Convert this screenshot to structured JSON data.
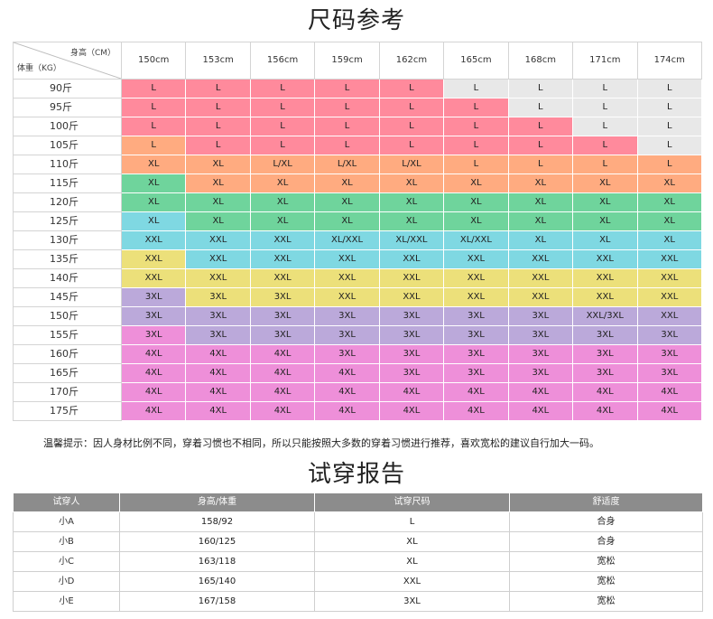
{
  "size_chart": {
    "title": "尺码参考",
    "corner_height_label": "身高（CM）",
    "corner_weight_label": "体重（KG）",
    "heights": [
      "150cm",
      "153cm",
      "156cm",
      "159cm",
      "162cm",
      "165cm",
      "168cm",
      "171cm",
      "174cm"
    ],
    "rows": [
      {
        "weight": "90斤",
        "cells": [
          "L",
          "L",
          "L",
          "L",
          "L",
          "L",
          "L",
          "L",
          "L"
        ]
      },
      {
        "weight": "95斤",
        "cells": [
          "L",
          "L",
          "L",
          "L",
          "L",
          "L",
          "L",
          "L",
          "L"
        ]
      },
      {
        "weight": "100斤",
        "cells": [
          "L",
          "L",
          "L",
          "L",
          "L",
          "L",
          "L",
          "L",
          "L"
        ]
      },
      {
        "weight": "105斤",
        "cells": [
          "L",
          "L",
          "L",
          "L",
          "L",
          "L",
          "L",
          "L",
          "L"
        ]
      },
      {
        "weight": "110斤",
        "cells": [
          "XL",
          "XL",
          "L/XL",
          "L/XL",
          "L/XL",
          "L",
          "L",
          "L",
          "L"
        ]
      },
      {
        "weight": "115斤",
        "cells": [
          "XL",
          "XL",
          "XL",
          "XL",
          "XL",
          "XL",
          "XL",
          "XL",
          "XL"
        ]
      },
      {
        "weight": "120斤",
        "cells": [
          "XL",
          "XL",
          "XL",
          "XL",
          "XL",
          "XL",
          "XL",
          "XL",
          "XL"
        ]
      },
      {
        "weight": "125斤",
        "cells": [
          "XL",
          "XL",
          "XL",
          "XL",
          "XL",
          "XL",
          "XL",
          "XL",
          "XL"
        ]
      },
      {
        "weight": "130斤",
        "cells": [
          "XXL",
          "XXL",
          "XXL",
          "XL/XXL",
          "XL/XXL",
          "XL/XXL",
          "XL",
          "XL",
          "XL"
        ]
      },
      {
        "weight": "135斤",
        "cells": [
          "XXL",
          "XXL",
          "XXL",
          "XXL",
          "XXL",
          "XXL",
          "XXL",
          "XXL",
          "XXL"
        ]
      },
      {
        "weight": "140斤",
        "cells": [
          "XXL",
          "XXL",
          "XXL",
          "XXL",
          "XXL",
          "XXL",
          "XXL",
          "XXL",
          "XXL"
        ]
      },
      {
        "weight": "145斤",
        "cells": [
          "3XL",
          "3XL",
          "3XL",
          "XXL",
          "XXL",
          "XXL",
          "XXL",
          "XXL",
          "XXL"
        ]
      },
      {
        "weight": "150斤",
        "cells": [
          "3XL",
          "3XL",
          "3XL",
          "3XL",
          "3XL",
          "3XL",
          "3XL",
          "XXL/3XL",
          "XXL"
        ]
      },
      {
        "weight": "155斤",
        "cells": [
          "3XL",
          "3XL",
          "3XL",
          "3XL",
          "3XL",
          "3XL",
          "3XL",
          "3XL",
          "3XL"
        ]
      },
      {
        "weight": "160斤",
        "cells": [
          "4XL",
          "4XL",
          "4XL",
          "3XL",
          "3XL",
          "3XL",
          "3XL",
          "3XL",
          "3XL"
        ]
      },
      {
        "weight": "165斤",
        "cells": [
          "4XL",
          "4XL",
          "4XL",
          "4XL",
          "3XL",
          "3XL",
          "3XL",
          "3XL",
          "3XL"
        ]
      },
      {
        "weight": "170斤",
        "cells": [
          "4XL",
          "4XL",
          "4XL",
          "4XL",
          "4XL",
          "4XL",
          "4XL",
          "4XL",
          "4XL"
        ]
      },
      {
        "weight": "175斤",
        "cells": [
          "4XL",
          "4XL",
          "4XL",
          "4XL",
          "4XL",
          "4XL",
          "4XL",
          "4XL",
          "4XL"
        ]
      }
    ],
    "colors": [
      [
        "#ff8a9c",
        "#ff8a9c",
        "#ff8a9c",
        "#ff8a9c",
        "#ff8a9c",
        "#e8e8e8",
        "#e8e8e8",
        "#e8e8e8",
        "#e8e8e8"
      ],
      [
        "#ff8a9c",
        "#ff8a9c",
        "#ff8a9c",
        "#ff8a9c",
        "#ff8a9c",
        "#ff8a9c",
        "#e8e8e8",
        "#e8e8e8",
        "#e8e8e8"
      ],
      [
        "#ff8a9c",
        "#ff8a9c",
        "#ff8a9c",
        "#ff8a9c",
        "#ff8a9c",
        "#ff8a9c",
        "#ff8a9c",
        "#e8e8e8",
        "#e8e8e8"
      ],
      [
        "#ffab80",
        "#ff8a9c",
        "#ff8a9c",
        "#ff8a9c",
        "#ff8a9c",
        "#ff8a9c",
        "#ff8a9c",
        "#ff8a9c",
        "#e8e8e8"
      ],
      [
        "#ffab80",
        "#ffab80",
        "#ffab80",
        "#ffab80",
        "#ffab80",
        "#ffab80",
        "#ffab80",
        "#ffab80",
        "#ffab80"
      ],
      [
        "#6fd49c",
        "#ffab80",
        "#ffab80",
        "#ffab80",
        "#ffab80",
        "#ffab80",
        "#ffab80",
        "#ffab80",
        "#ffab80"
      ],
      [
        "#6fd49c",
        "#6fd49c",
        "#6fd49c",
        "#6fd49c",
        "#6fd49c",
        "#6fd49c",
        "#6fd49c",
        "#6fd49c",
        "#6fd49c"
      ],
      [
        "#7fd8e2",
        "#6fd49c",
        "#6fd49c",
        "#6fd49c",
        "#6fd49c",
        "#6fd49c",
        "#6fd49c",
        "#6fd49c",
        "#6fd49c"
      ],
      [
        "#7fd8e2",
        "#7fd8e2",
        "#7fd8e2",
        "#7fd8e2",
        "#7fd8e2",
        "#7fd8e2",
        "#7fd8e2",
        "#7fd8e2",
        "#7fd8e2"
      ],
      [
        "#ece07a",
        "#7fd8e2",
        "#7fd8e2",
        "#7fd8e2",
        "#7fd8e2",
        "#7fd8e2",
        "#7fd8e2",
        "#7fd8e2",
        "#7fd8e2"
      ],
      [
        "#ece07a",
        "#ece07a",
        "#ece07a",
        "#ece07a",
        "#ece07a",
        "#ece07a",
        "#ece07a",
        "#ece07a",
        "#ece07a"
      ],
      [
        "#bba9da",
        "#ece07a",
        "#ece07a",
        "#ece07a",
        "#ece07a",
        "#ece07a",
        "#ece07a",
        "#ece07a",
        "#ece07a"
      ],
      [
        "#bba9da",
        "#bba9da",
        "#bba9da",
        "#bba9da",
        "#bba9da",
        "#bba9da",
        "#bba9da",
        "#bba9da",
        "#bba9da"
      ],
      [
        "#ee8fd9",
        "#bba9da",
        "#bba9da",
        "#bba9da",
        "#bba9da",
        "#bba9da",
        "#bba9da",
        "#bba9da",
        "#bba9da"
      ],
      [
        "#ee8fd9",
        "#ee8fd9",
        "#ee8fd9",
        "#ee8fd9",
        "#ee8fd9",
        "#ee8fd9",
        "#ee8fd9",
        "#ee8fd9",
        "#ee8fd9"
      ],
      [
        "#ee8fd9",
        "#ee8fd9",
        "#ee8fd9",
        "#ee8fd9",
        "#ee8fd9",
        "#ee8fd9",
        "#ee8fd9",
        "#ee8fd9",
        "#ee8fd9"
      ],
      [
        "#ee8fd9",
        "#ee8fd9",
        "#ee8fd9",
        "#ee8fd9",
        "#ee8fd9",
        "#ee8fd9",
        "#ee8fd9",
        "#ee8fd9",
        "#ee8fd9"
      ],
      [
        "#ee8fd9",
        "#ee8fd9",
        "#ee8fd9",
        "#ee8fd9",
        "#ee8fd9",
        "#ee8fd9",
        "#ee8fd9",
        "#ee8fd9",
        "#ee8fd9"
      ]
    ]
  },
  "tip": "温馨提示：因人身材比例不同，穿着习惯也不相同，所以只能按照大多数的穿着习惯进行推荐，喜欢宽松的建议自行加大一码。",
  "report": {
    "title": "试穿报告",
    "headers": [
      "试穿人",
      "身高/体重",
      "试穿尺码",
      "舒适度"
    ],
    "rows": [
      [
        "小A",
        "158/92",
        "L",
        "合身"
      ],
      [
        "小B",
        "160/125",
        "XL",
        "合身"
      ],
      [
        "小C",
        "163/118",
        "XL",
        "宽松"
      ],
      [
        "小D",
        "165/140",
        "XXL",
        "宽松"
      ],
      [
        "小E",
        "167/158",
        "3XL",
        "宽松"
      ]
    ]
  }
}
